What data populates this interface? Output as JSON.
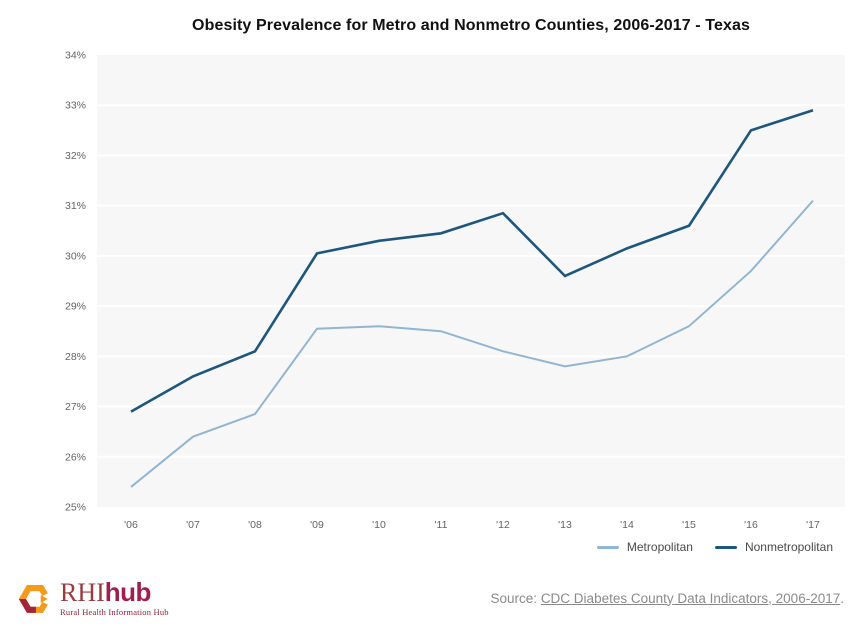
{
  "chart_data": {
    "type": "line",
    "title": "Obesity Prevalence for Metro and Nonmetro Counties, 2006-2017 - Texas",
    "categories": [
      "'06",
      "'07",
      "'08",
      "'09",
      "'10",
      "'11",
      "'12",
      "'13",
      "'14",
      "'15",
      "'16",
      "'17"
    ],
    "series": [
      {
        "name": "Metropolitan",
        "color": "#92b5d1",
        "values": [
          25.4,
          26.4,
          26.85,
          28.55,
          28.6,
          28.5,
          28.1,
          27.8,
          28.0,
          28.6,
          29.7,
          31.1
        ]
      },
      {
        "name": "Nonmetropolitan",
        "color": "#1e567c",
        "values": [
          26.9,
          27.6,
          28.1,
          30.05,
          30.3,
          30.45,
          30.85,
          29.6,
          30.15,
          30.6,
          32.5,
          32.9
        ]
      }
    ],
    "xlabel": "",
    "ylabel": "",
    "ylim": [
      25,
      34
    ],
    "ytick_step": 1,
    "ytick_suffix": "%",
    "grid": true,
    "gridline_color": "#ffffff",
    "plot_background": "#f7f7f7",
    "legend_position": "bottom-right"
  },
  "footer": {
    "logo": {
      "text_rhi": "RHI",
      "text_hub": "hub",
      "tagline": "Rural Health Information Hub",
      "colors": {
        "orange": "#f49b1d",
        "maroon": "#a22638",
        "rhi_text": "#9a3b40",
        "hub_text": "#9e1f4e",
        "tagline_text": "#8e2133"
      }
    },
    "source": {
      "label": "Source:",
      "link_text": "CDC Diabetes County Data Indicators, 2006-2017",
      "suffix": "."
    }
  }
}
